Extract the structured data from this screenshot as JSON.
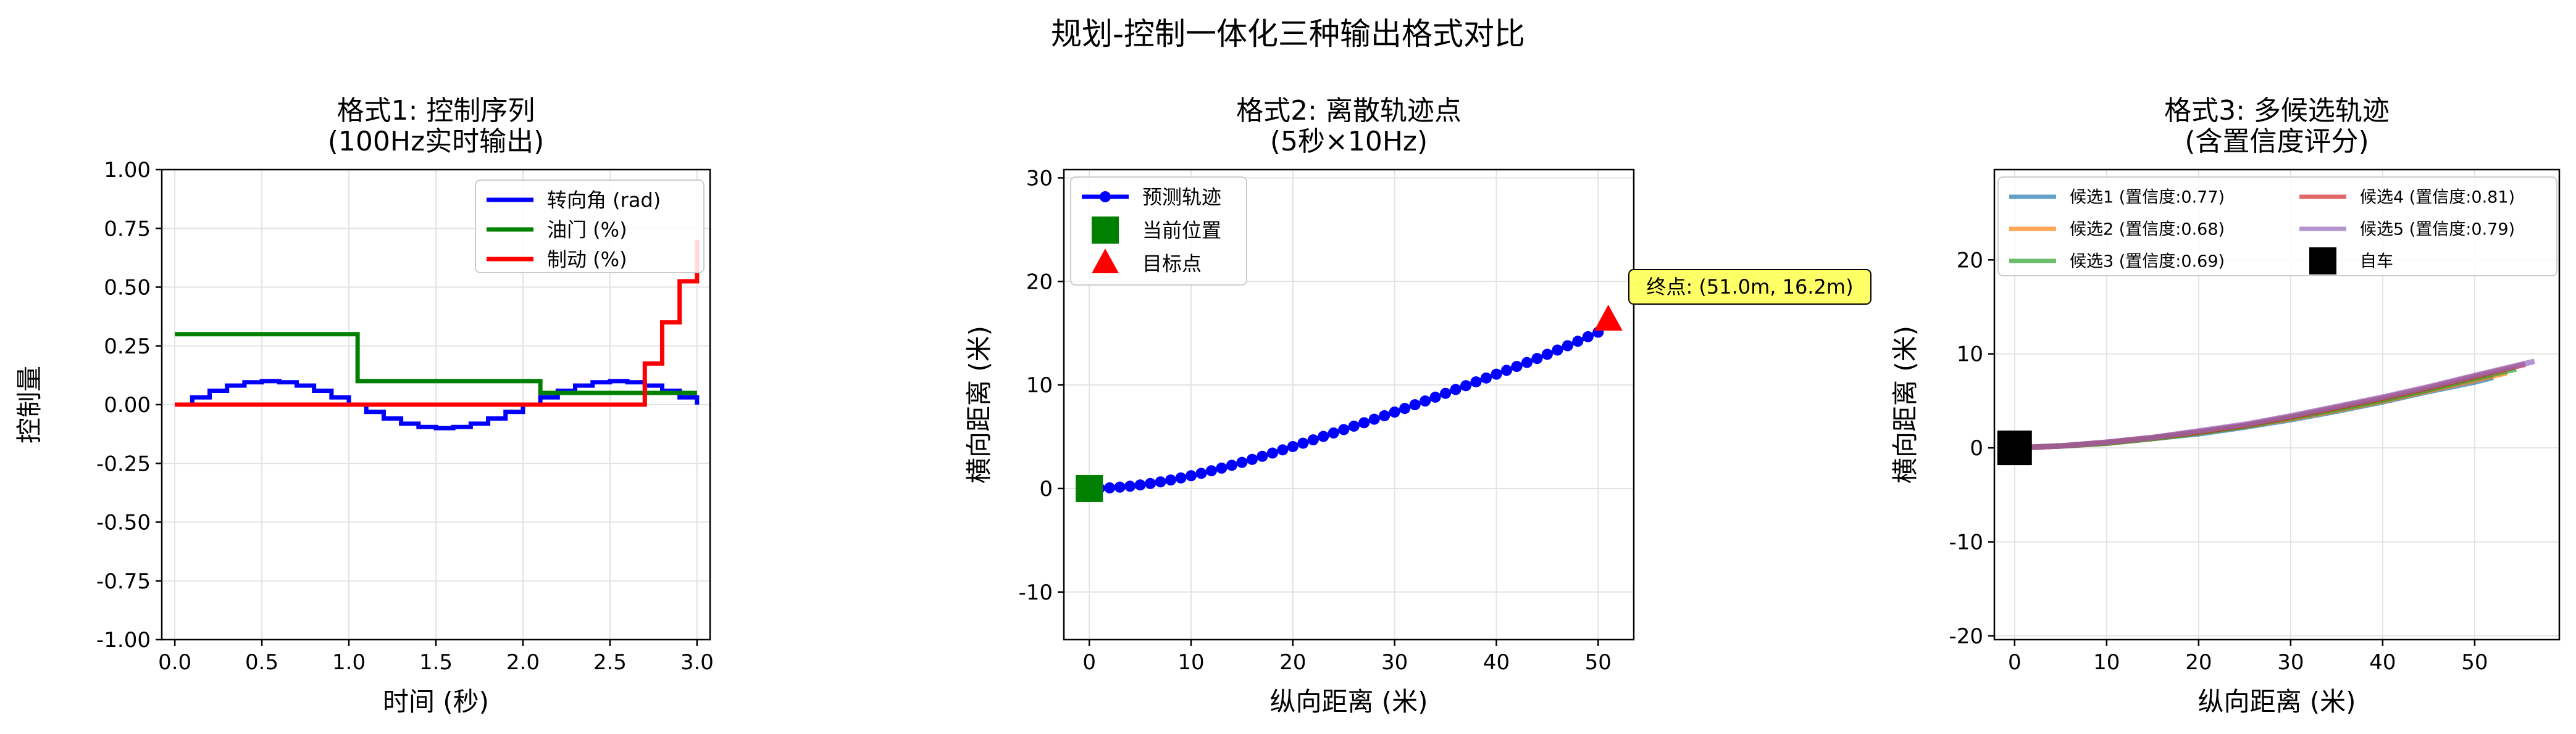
{
  "figure": {
    "suptitle": "规划-控制一体化三种输出格式对比"
  },
  "chart_data": [
    {
      "type": "line",
      "title": "格式1: 控制序列",
      "subtitle": "(100Hz实时输出)",
      "xlabel": "时间 (秒)",
      "ylabel": "控制量",
      "xlim": [
        -0.075,
        3.075
      ],
      "ylim": [
        -1.0,
        1.0
      ],
      "xticks": [
        0.0,
        0.5,
        1.0,
        1.5,
        2.0,
        2.5,
        3.0
      ],
      "xtick_labels": [
        "0.0",
        "0.5",
        "1.0",
        "1.5",
        "2.0",
        "2.5",
        "3.0"
      ],
      "yticks": [
        -1.0,
        -0.75,
        -0.5,
        -0.25,
        0.0,
        0.25,
        0.5,
        0.75,
        1.0
      ],
      "ytick_labels": [
        "-1.00",
        "-0.75",
        "-0.50",
        "-0.25",
        "0.00",
        "0.25",
        "0.50",
        "0.75",
        "1.00"
      ],
      "grid": true,
      "legend": "top-right",
      "step": "post",
      "series": [
        {
          "name": "转向角 (rad)",
          "color": "#0000ff",
          "x": [
            0.0,
            0.1,
            0.2,
            0.3,
            0.4,
            0.5,
            0.6,
            0.7,
            0.8,
            0.9,
            1.0,
            1.1,
            1.2,
            1.3,
            1.4,
            1.5,
            1.6,
            1.7,
            1.8,
            1.9,
            2.0,
            2.1,
            2.2,
            2.3,
            2.4,
            2.5,
            2.6,
            2.7,
            2.8,
            2.9,
            3.0
          ],
          "values": [
            0.0,
            0.031,
            0.059,
            0.081,
            0.095,
            0.1,
            0.095,
            0.081,
            0.059,
            0.031,
            0.0,
            -0.031,
            -0.059,
            -0.081,
            -0.095,
            -0.1,
            -0.095,
            -0.081,
            -0.059,
            -0.031,
            0.0,
            0.031,
            0.059,
            0.081,
            0.095,
            0.1,
            0.095,
            0.081,
            0.059,
            0.031,
            0.0
          ]
        },
        {
          "name": "油门 (%)",
          "color": "#008000",
          "x": [
            0.0,
            1.0,
            1.05,
            2.05,
            2.1,
            3.0
          ],
          "values": [
            0.3,
            0.3,
            0.1,
            0.1,
            0.05,
            0.05
          ]
        },
        {
          "name": "制动 (%)",
          "color": "#ff0000",
          "x": [
            0.0,
            2.7,
            2.8,
            2.9,
            3.0
          ],
          "values": [
            0.0,
            0.175,
            0.35,
            0.525,
            0.7
          ]
        }
      ]
    },
    {
      "type": "line",
      "title": "格式2: 离散轨迹点",
      "subtitle": "(5秒×10Hz)",
      "xlabel": "纵向距离 (米)",
      "ylabel": "横向距离 (米)",
      "xlim": [
        -2.5,
        53.5
      ],
      "ylim": [
        -14.6,
        30.8
      ],
      "xticks": [
        0,
        10,
        20,
        30,
        40,
        50
      ],
      "yticks": [
        -10,
        0,
        10,
        20,
        30
      ],
      "grid": true,
      "legend": "top-left",
      "series": [
        {
          "name": "预测轨迹",
          "color": "#0000ff",
          "marker": "circle",
          "x": [
            0,
            1,
            2,
            3,
            4,
            5,
            6,
            7,
            8,
            9,
            10,
            11,
            12,
            13,
            14,
            15,
            16,
            17,
            18,
            19,
            20,
            21,
            22,
            23,
            24,
            25,
            26,
            27,
            28,
            29,
            30,
            31,
            32,
            33,
            34,
            35,
            36,
            37,
            38,
            39,
            40,
            41,
            42,
            43,
            44,
            45,
            46,
            47,
            48,
            49,
            50
          ],
          "values": [
            0.0,
            0.02,
            0.06,
            0.13,
            0.22,
            0.34,
            0.48,
            0.64,
            0.82,
            1.02,
            1.23,
            1.46,
            1.71,
            1.97,
            2.24,
            2.52,
            2.81,
            3.11,
            3.42,
            3.73,
            4.05,
            4.37,
            4.7,
            5.03,
            5.36,
            5.69,
            6.02,
            6.35,
            6.69,
            7.03,
            7.38,
            7.73,
            8.09,
            8.45,
            8.82,
            9.19,
            9.56,
            9.93,
            10.3,
            10.67,
            11.04,
            11.41,
            11.79,
            12.17,
            12.56,
            12.96,
            13.37,
            13.79,
            14.22,
            14.66,
            15.1
          ]
        },
        {
          "name": "当前位置",
          "color": "#008000",
          "marker": "square",
          "x": [
            0
          ],
          "values": [
            0
          ]
        },
        {
          "name": "目标点",
          "color": "#ff0000",
          "marker": "triangle",
          "x": [
            51
          ],
          "values": [
            16.2
          ]
        }
      ],
      "annotation": {
        "text": "终点: (51.0m, 16.2m)",
        "x": 51,
        "y": 16.2,
        "background": "#ffff66"
      }
    },
    {
      "type": "line",
      "title": "格式3: 多候选轨迹",
      "subtitle": "(含置信度评分)",
      "xlabel": "纵向距离 (米)",
      "ylabel": "横向距离 (米)",
      "xlim": [
        -2.2,
        59.2
      ],
      "ylim": [
        -20.4,
        29.6
      ],
      "xticks": [
        0,
        10,
        20,
        30,
        40,
        50
      ],
      "yticks": [
        -20,
        -10,
        0,
        10,
        20
      ],
      "grid": true,
      "legend": "top",
      "series": [
        {
          "name": "候选1 (置信度:0.77)",
          "color": "#1f77b4",
          "x": [
            0,
            5,
            10,
            15,
            20,
            25,
            30,
            35,
            40,
            45,
            50,
            52
          ],
          "values": [
            0,
            0.2,
            0.5,
            1.0,
            1.5,
            2.2,
            3.0,
            3.9,
            4.9,
            6.0,
            7.0,
            7.5
          ]
        },
        {
          "name": "候选2 (置信度:0.68)",
          "color": "#ff7f0e",
          "x": [
            0,
            5,
            10,
            15,
            20,
            25,
            30,
            35,
            40,
            45,
            50,
            53.5
          ],
          "values": [
            0,
            0.2,
            0.5,
            1.0,
            1.6,
            2.3,
            3.1,
            4.0,
            5.0,
            6.1,
            7.2,
            8.0
          ]
        },
        {
          "name": "候选3 (置信度:0.69)",
          "color": "#2ca02c",
          "x": [
            0,
            5,
            10,
            15,
            20,
            25,
            30,
            35,
            40,
            45,
            50,
            54.5
          ],
          "values": [
            0,
            0.2,
            0.5,
            1.0,
            1.6,
            2.3,
            3.2,
            4.1,
            5.1,
            6.2,
            7.4,
            8.4
          ]
        },
        {
          "name": "候选4 (置信度:0.81)",
          "color": "#d62728",
          "x": [
            0,
            5,
            10,
            15,
            20,
            25,
            30,
            35,
            40,
            45,
            50,
            55.5
          ],
          "values": [
            0,
            0.2,
            0.6,
            1.1,
            1.7,
            2.4,
            3.3,
            4.3,
            5.3,
            6.4,
            7.6,
            8.9
          ]
        },
        {
          "name": "候选5 (置信度:0.79)",
          "color": "#9467bd",
          "x": [
            0,
            5,
            10,
            15,
            20,
            25,
            30,
            35,
            40,
            45,
            50,
            56.5
          ],
          "values": [
            0,
            0.2,
            0.6,
            1.1,
            1.8,
            2.5,
            3.4,
            4.4,
            5.4,
            6.5,
            7.7,
            9.2
          ]
        },
        {
          "name": "自车",
          "color": "#000000",
          "marker": "square",
          "x": [
            0
          ],
          "values": [
            0
          ]
        }
      ]
    }
  ]
}
